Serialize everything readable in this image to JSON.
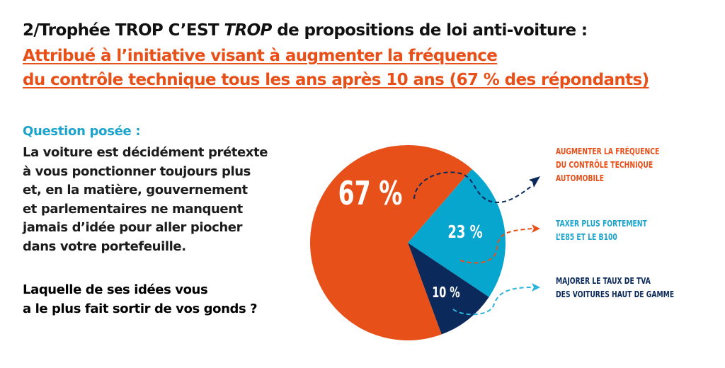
{
  "header": {
    "title_part1": "2/Trophée TROP C’EST ",
    "title_italic": "TROP",
    "title_part2": " de propositions de loi anti-voiture :",
    "subtitle_line1": "Attribué à l’initiative visant à augmenter la fréquence",
    "subtitle_line2": "du contrôle technique tous les ans après 10 ans (67 % des répondants)"
  },
  "question": {
    "label": "Question posée :",
    "lines": [
      "La voiture est décidément prétexte",
      "à vous ponctionner toujours plus",
      "et, en la matière, gouvernement",
      "et parlementaires ne manquent",
      "jamais d’idée pour aller piocher",
      "dans votre portefeuille."
    ],
    "ask_lines": [
      "Laquelle de ses idées vous",
      "a le plus fait sortir de vos gonds ?"
    ]
  },
  "colors": {
    "orange": "#e8501a",
    "blue": "#06a6cf",
    "navy": "#0b2a5b"
  },
  "chart_data": {
    "type": "pie",
    "title": "",
    "slices": [
      {
        "label": "AUGMENTER LA FRÉQUENCE DU CONTRÔLE TECHNIQUE AUTOMOBILE",
        "label_lines": [
          "AUGMENTER LA FRÉQUENCE",
          "DU CONTRÔLE TECHNIQUE",
          "AUTOMOBILE"
        ],
        "value": 67,
        "display": "67 %",
        "color": "#e8501a",
        "legend_color": "#e8501a",
        "arrow_color": "#0b2a5b"
      },
      {
        "label": "TAXER PLUS FORTEMENT L’E85 ET LE B100",
        "label_lines": [
          "TAXER PLUS FORTEMENT",
          "L’E85 ET LE B100"
        ],
        "value": 23,
        "display": "23 %",
        "color": "#06a6cf",
        "legend_color": "#1aa3cc",
        "arrow_color": "#e8501a"
      },
      {
        "label": "MAJORER LE TAUX DE TVA DES VOITURES HAUT DE GAMME",
        "label_lines": [
          "MAJORER LE TAUX DE TVA",
          "DES VOITURES HAUT DE GAMME"
        ],
        "value": 10,
        "display": "10 %",
        "color": "#0b2a5b",
        "legend_color": "#0b2a5b",
        "arrow_color": "#2bb3dd"
      }
    ],
    "legend_position": "right"
  }
}
